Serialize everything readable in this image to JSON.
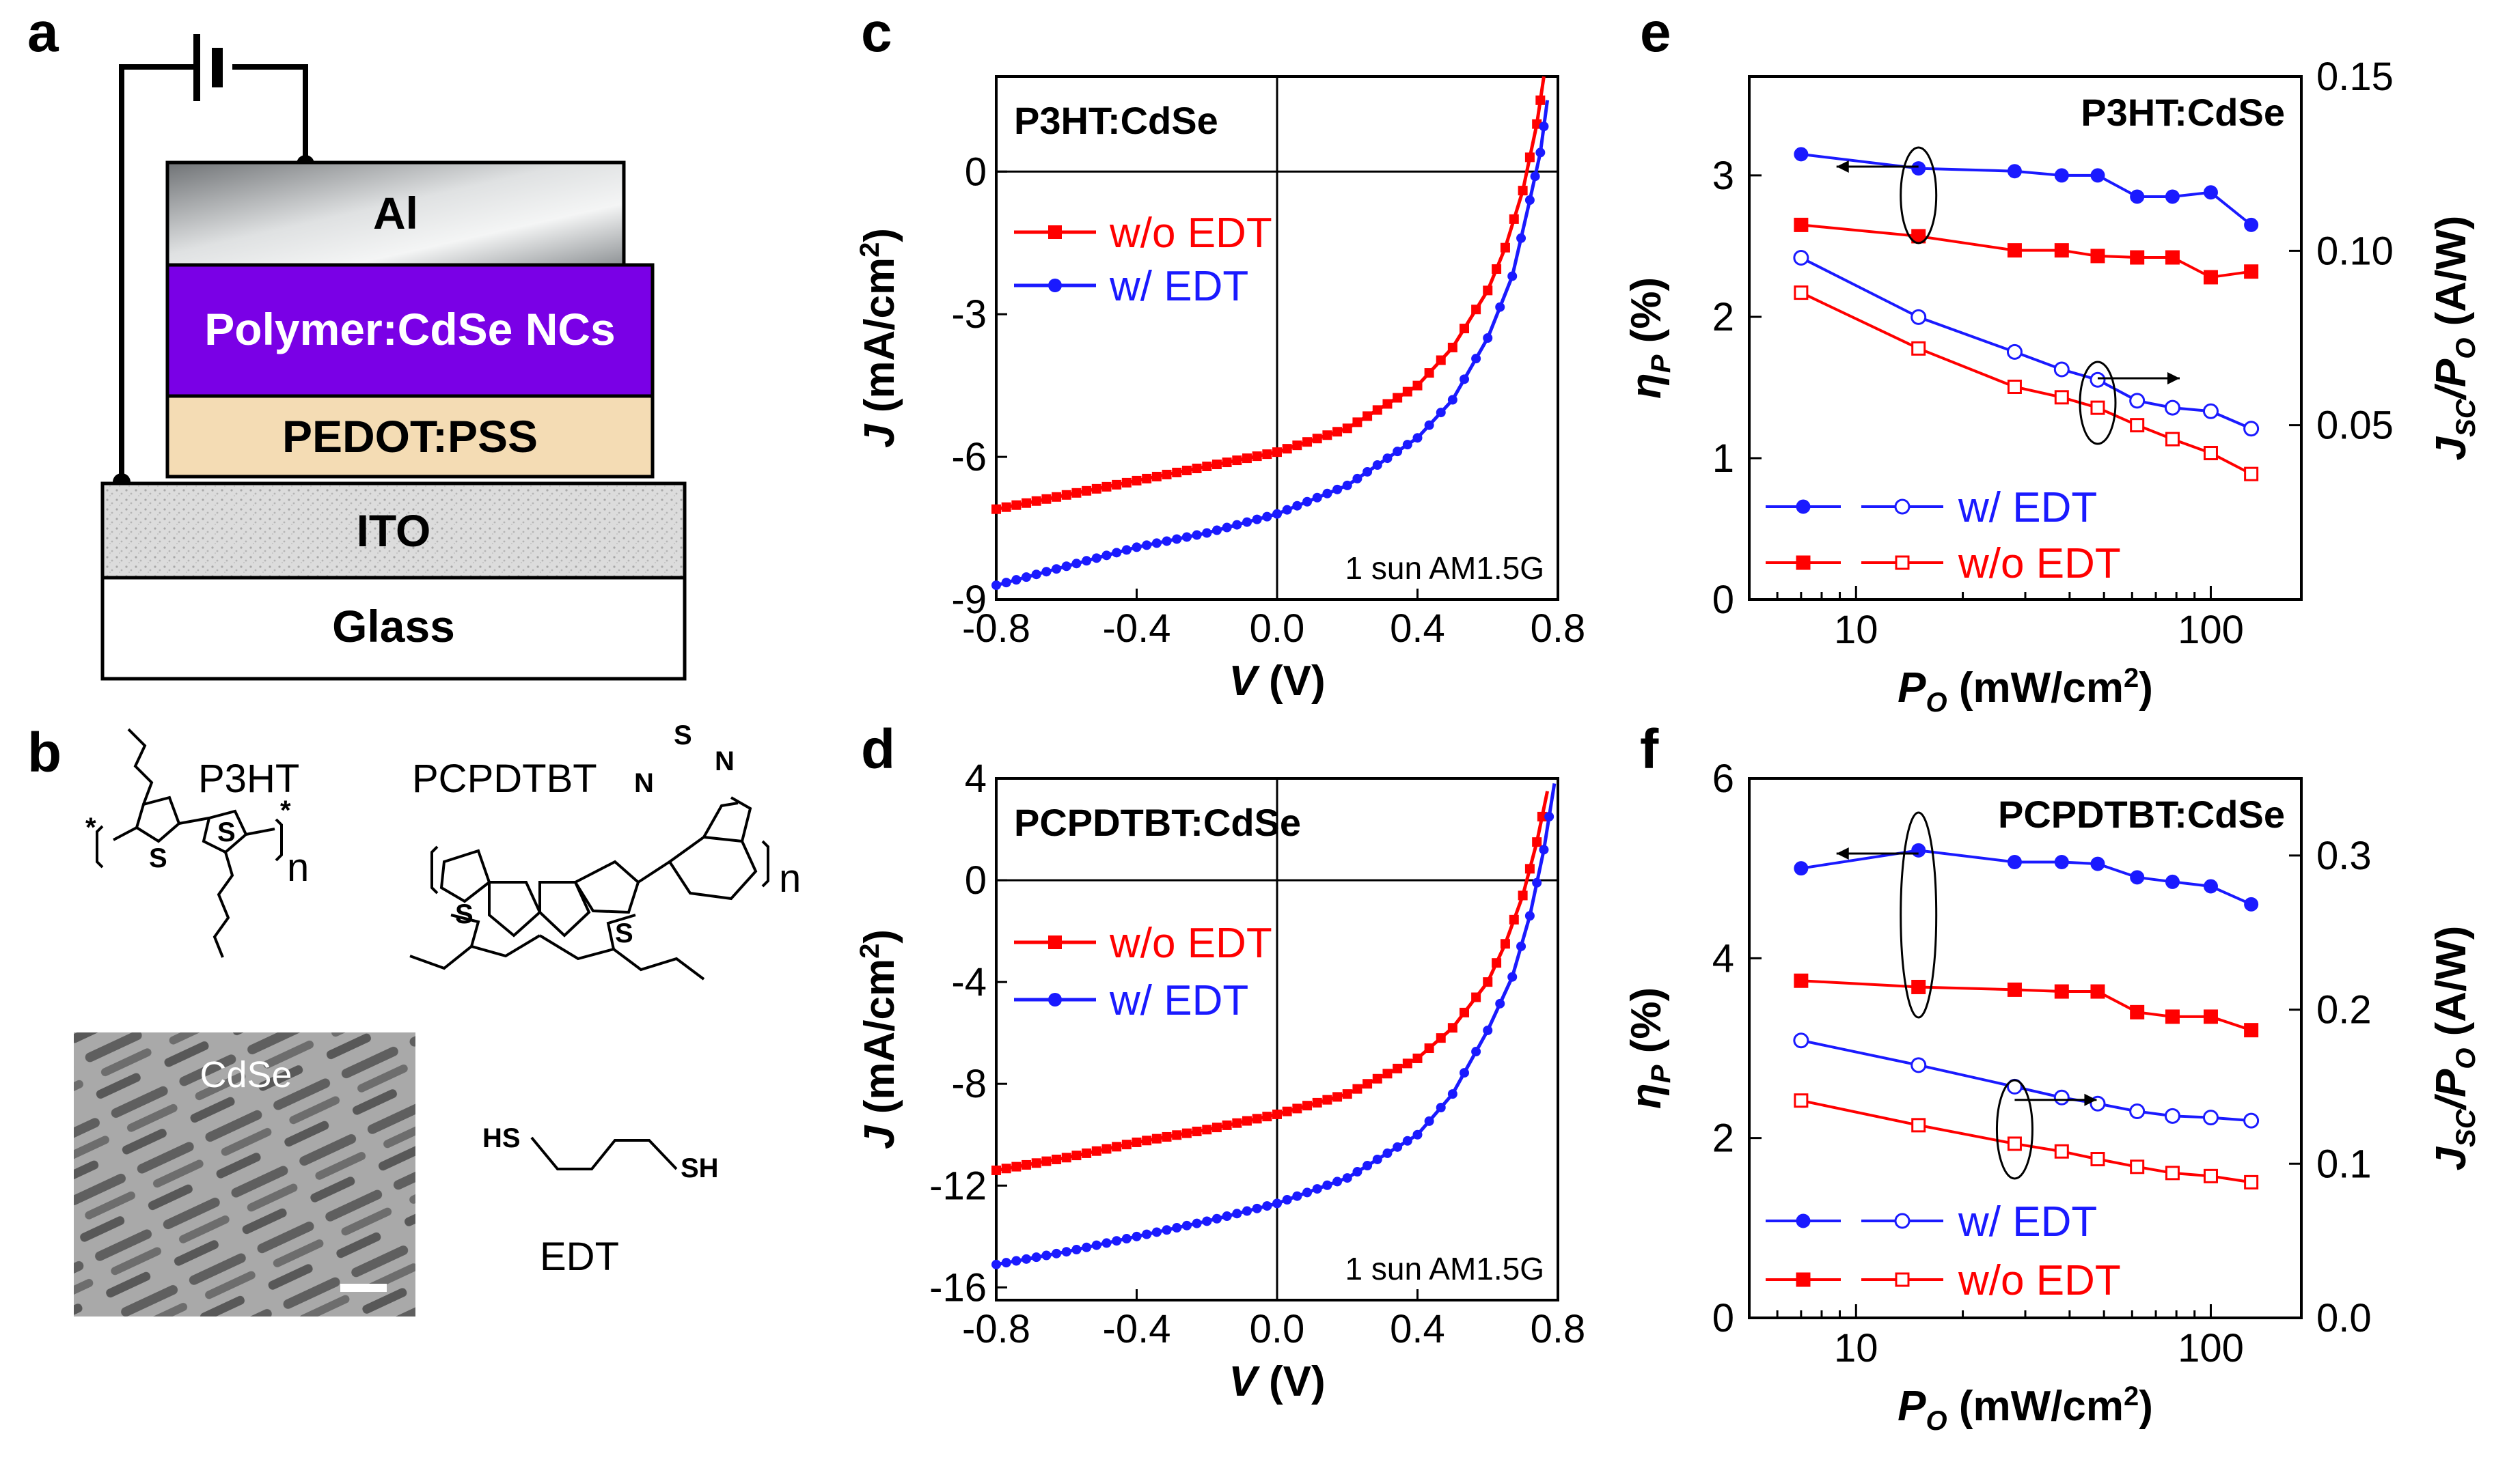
{
  "panels": {
    "a": "a",
    "b": "b",
    "c": "c",
    "d": "d",
    "e": "e",
    "f": "f"
  },
  "device": {
    "layers": [
      "Al",
      "Polymer:CdSe  NCs",
      "PEDOT:PSS",
      "ITO",
      "Glass"
    ]
  },
  "molecules": {
    "p3ht": "P3HT",
    "pcpdtbt": "PCPDTBT",
    "cdse": "CdSe",
    "edt": "EDT",
    "hs": "HS",
    "sh": "SH",
    "subscript_n": "n",
    "atom_s": "S",
    "atom_n": "N",
    "star": "*"
  },
  "legend": {
    "without": "w/o EDT",
    "with": "w/ EDT"
  },
  "illumination": "1 sun AM1.5G",
  "colors": {
    "without": "#ff0000",
    "with": "#1a1aff"
  },
  "chart_data": [
    {
      "id": "c",
      "type": "line",
      "title": "P3HT:CdSe",
      "xlabel": "V (V)",
      "ylabel": "J (mA/cm2)",
      "xlim": [
        -0.8,
        0.8
      ],
      "ylim": [
        -9,
        2
      ],
      "xticks": [
        "-0.8",
        "-0.4",
        "0.0",
        "0.4",
        "0.8"
      ],
      "yticks": [
        "-9",
        "-6",
        "-3",
        "0"
      ],
      "series": [
        {
          "name": "w/o EDT",
          "marker": "square",
          "points": [
            [
              -0.8,
              -7.1
            ],
            [
              -0.6,
              -6.8
            ],
            [
              -0.4,
              -6.5
            ],
            [
              -0.2,
              -6.2
            ],
            [
              0.0,
              -5.9
            ],
            [
              0.2,
              -5.4
            ],
            [
              0.4,
              -4.5
            ],
            [
              0.5,
              -3.7
            ],
            [
              0.6,
              -2.5
            ],
            [
              0.65,
              -1.6
            ],
            [
              0.7,
              -0.4
            ],
            [
              0.74,
              1.0
            ],
            [
              0.76,
              2.0
            ]
          ]
        },
        {
          "name": "w/ EDT",
          "marker": "circle",
          "points": [
            [
              -0.8,
              -8.7
            ],
            [
              -0.6,
              -8.3
            ],
            [
              -0.4,
              -7.9
            ],
            [
              -0.2,
              -7.6
            ],
            [
              0.0,
              -7.2
            ],
            [
              0.2,
              -6.6
            ],
            [
              0.4,
              -5.6
            ],
            [
              0.5,
              -4.8
            ],
            [
              0.6,
              -3.5
            ],
            [
              0.67,
              -2.2
            ],
            [
              0.72,
              -0.6
            ],
            [
              0.75,
              0.4
            ],
            [
              0.77,
              1.5
            ]
          ]
        }
      ]
    },
    {
      "id": "d",
      "type": "line",
      "title": "PCPDTBT:CdSe",
      "xlabel": "V (V)",
      "ylabel": "J (mA/cm2)",
      "xlim": [
        -0.8,
        0.8
      ],
      "ylim": [
        -16.5,
        4
      ],
      "xticks": [
        "-0.8",
        "-0.4",
        "0.0",
        "0.4",
        "0.8"
      ],
      "yticks": [
        "-16",
        "-12",
        "-8",
        "-4",
        "0",
        "4"
      ],
      "series": [
        {
          "name": "w/o EDT",
          "marker": "square",
          "points": [
            [
              -0.8,
              -11.4
            ],
            [
              -0.6,
              -10.9
            ],
            [
              -0.4,
              -10.3
            ],
            [
              -0.2,
              -9.8
            ],
            [
              0.0,
              -9.2
            ],
            [
              0.2,
              -8.4
            ],
            [
              0.4,
              -7.0
            ],
            [
              0.5,
              -5.8
            ],
            [
              0.6,
              -4.0
            ],
            [
              0.65,
              -2.5
            ],
            [
              0.7,
              -0.6
            ],
            [
              0.74,
              1.5
            ],
            [
              0.77,
              3.5
            ]
          ]
        },
        {
          "name": "w/ EDT",
          "marker": "circle",
          "points": [
            [
              -0.8,
              -15.1
            ],
            [
              -0.6,
              -14.6
            ],
            [
              -0.4,
              -14.0
            ],
            [
              -0.2,
              -13.4
            ],
            [
              0.0,
              -12.7
            ],
            [
              0.2,
              -11.7
            ],
            [
              0.4,
              -10.0
            ],
            [
              0.5,
              -8.4
            ],
            [
              0.6,
              -5.9
            ],
            [
              0.67,
              -3.8
            ],
            [
              0.72,
              -1.4
            ],
            [
              0.76,
              1.2
            ],
            [
              0.79,
              3.8
            ]
          ]
        }
      ]
    },
    {
      "id": "e",
      "type": "line",
      "title": "P3HT:CdSe",
      "xlabel": "PO (mW/cm2)",
      "ylabel": "ηP (%)",
      "y2label": "Jsc/Po (A/W)",
      "xscale": "log",
      "xlim": [
        5,
        180
      ],
      "ylim": [
        0,
        3.7
      ],
      "y2lim": [
        0,
        0.15
      ],
      "xticks": [
        "10",
        "100"
      ],
      "yticks": [
        "0",
        "1",
        "2",
        "3"
      ],
      "y2ticks": [
        "0.05",
        "0.10",
        "0.15"
      ],
      "series": [
        {
          "name": "w/ EDT (ηP)",
          "axis": "left",
          "marker": "circle-filled",
          "color": "with",
          "points": [
            [
              7,
              3.15
            ],
            [
              15,
              3.05
            ],
            [
              28,
              3.03
            ],
            [
              38,
              3.0
            ],
            [
              48,
              3.0
            ],
            [
              62,
              2.85
            ],
            [
              78,
              2.85
            ],
            [
              100,
              2.88
            ],
            [
              130,
              2.65
            ]
          ]
        },
        {
          "name": "w/o EDT (ηP)",
          "axis": "left",
          "marker": "square-filled",
          "color": "without",
          "points": [
            [
              7,
              2.65
            ],
            [
              15,
              2.57
            ],
            [
              28,
              2.47
            ],
            [
              38,
              2.47
            ],
            [
              48,
              2.43
            ],
            [
              62,
              2.42
            ],
            [
              78,
              2.42
            ],
            [
              100,
              2.28
            ],
            [
              130,
              2.32
            ]
          ]
        },
        {
          "name": "w/ EDT (Jsc/Po)",
          "axis": "right",
          "marker": "circle-open",
          "color": "with",
          "points": [
            [
              7,
              0.098
            ],
            [
              15,
              0.081
            ],
            [
              28,
              0.071
            ],
            [
              38,
              0.066
            ],
            [
              48,
              0.063
            ],
            [
              62,
              0.057
            ],
            [
              78,
              0.055
            ],
            [
              100,
              0.054
            ],
            [
              130,
              0.049
            ]
          ]
        },
        {
          "name": "w/o EDT (Jsc/Po)",
          "axis": "right",
          "marker": "square-open",
          "color": "without",
          "points": [
            [
              7,
              0.088
            ],
            [
              15,
              0.072
            ],
            [
              28,
              0.061
            ],
            [
              38,
              0.058
            ],
            [
              48,
              0.055
            ],
            [
              62,
              0.05
            ],
            [
              78,
              0.046
            ],
            [
              100,
              0.042
            ],
            [
              130,
              0.036
            ]
          ]
        }
      ]
    },
    {
      "id": "f",
      "type": "line",
      "title": "PCPDTBT:CdSe",
      "xlabel": "PO (mW/cm2)",
      "ylabel": "ηP (%)",
      "y2label": "Jsc/Po (A/W)",
      "xscale": "log",
      "xlim": [
        5,
        180
      ],
      "ylim": [
        0,
        6
      ],
      "y2lim": [
        0,
        0.35
      ],
      "xticks": [
        "10",
        "100"
      ],
      "yticks": [
        "0",
        "2",
        "4",
        "6"
      ],
      "y2ticks": [
        "0.0",
        "0.1",
        "0.2",
        "0.3"
      ],
      "series": [
        {
          "name": "w/ EDT (ηP)",
          "axis": "left",
          "marker": "circle-filled",
          "color": "with",
          "points": [
            [
              7,
              5.0
            ],
            [
              15,
              5.2
            ],
            [
              28,
              5.07
            ],
            [
              38,
              5.07
            ],
            [
              48,
              5.05
            ],
            [
              62,
              4.9
            ],
            [
              78,
              4.85
            ],
            [
              100,
              4.8
            ],
            [
              130,
              4.6
            ]
          ]
        },
        {
          "name": "w/o EDT (ηP)",
          "axis": "left",
          "marker": "square-filled",
          "color": "without",
          "points": [
            [
              7,
              3.75
            ],
            [
              15,
              3.68
            ],
            [
              28,
              3.65
            ],
            [
              38,
              3.63
            ],
            [
              48,
              3.63
            ],
            [
              62,
              3.4
            ],
            [
              78,
              3.35
            ],
            [
              100,
              3.35
            ],
            [
              130,
              3.2
            ]
          ]
        },
        {
          "name": "w/ EDT (Jsc/Po)",
          "axis": "right",
          "marker": "circle-open",
          "color": "with",
          "points": [
            [
              7,
              0.18
            ],
            [
              15,
              0.164
            ],
            [
              28,
              0.15
            ],
            [
              38,
              0.143
            ],
            [
              48,
              0.139
            ],
            [
              62,
              0.134
            ],
            [
              78,
              0.131
            ],
            [
              100,
              0.13
            ],
            [
              130,
              0.128
            ]
          ]
        },
        {
          "name": "w/o EDT (Jsc/Po)",
          "axis": "right",
          "marker": "square-open",
          "color": "without",
          "points": [
            [
              7,
              0.141
            ],
            [
              15,
              0.125
            ],
            [
              28,
              0.113
            ],
            [
              38,
              0.108
            ],
            [
              48,
              0.103
            ],
            [
              62,
              0.098
            ],
            [
              78,
              0.094
            ],
            [
              100,
              0.092
            ],
            [
              130,
              0.088
            ]
          ]
        }
      ]
    }
  ]
}
